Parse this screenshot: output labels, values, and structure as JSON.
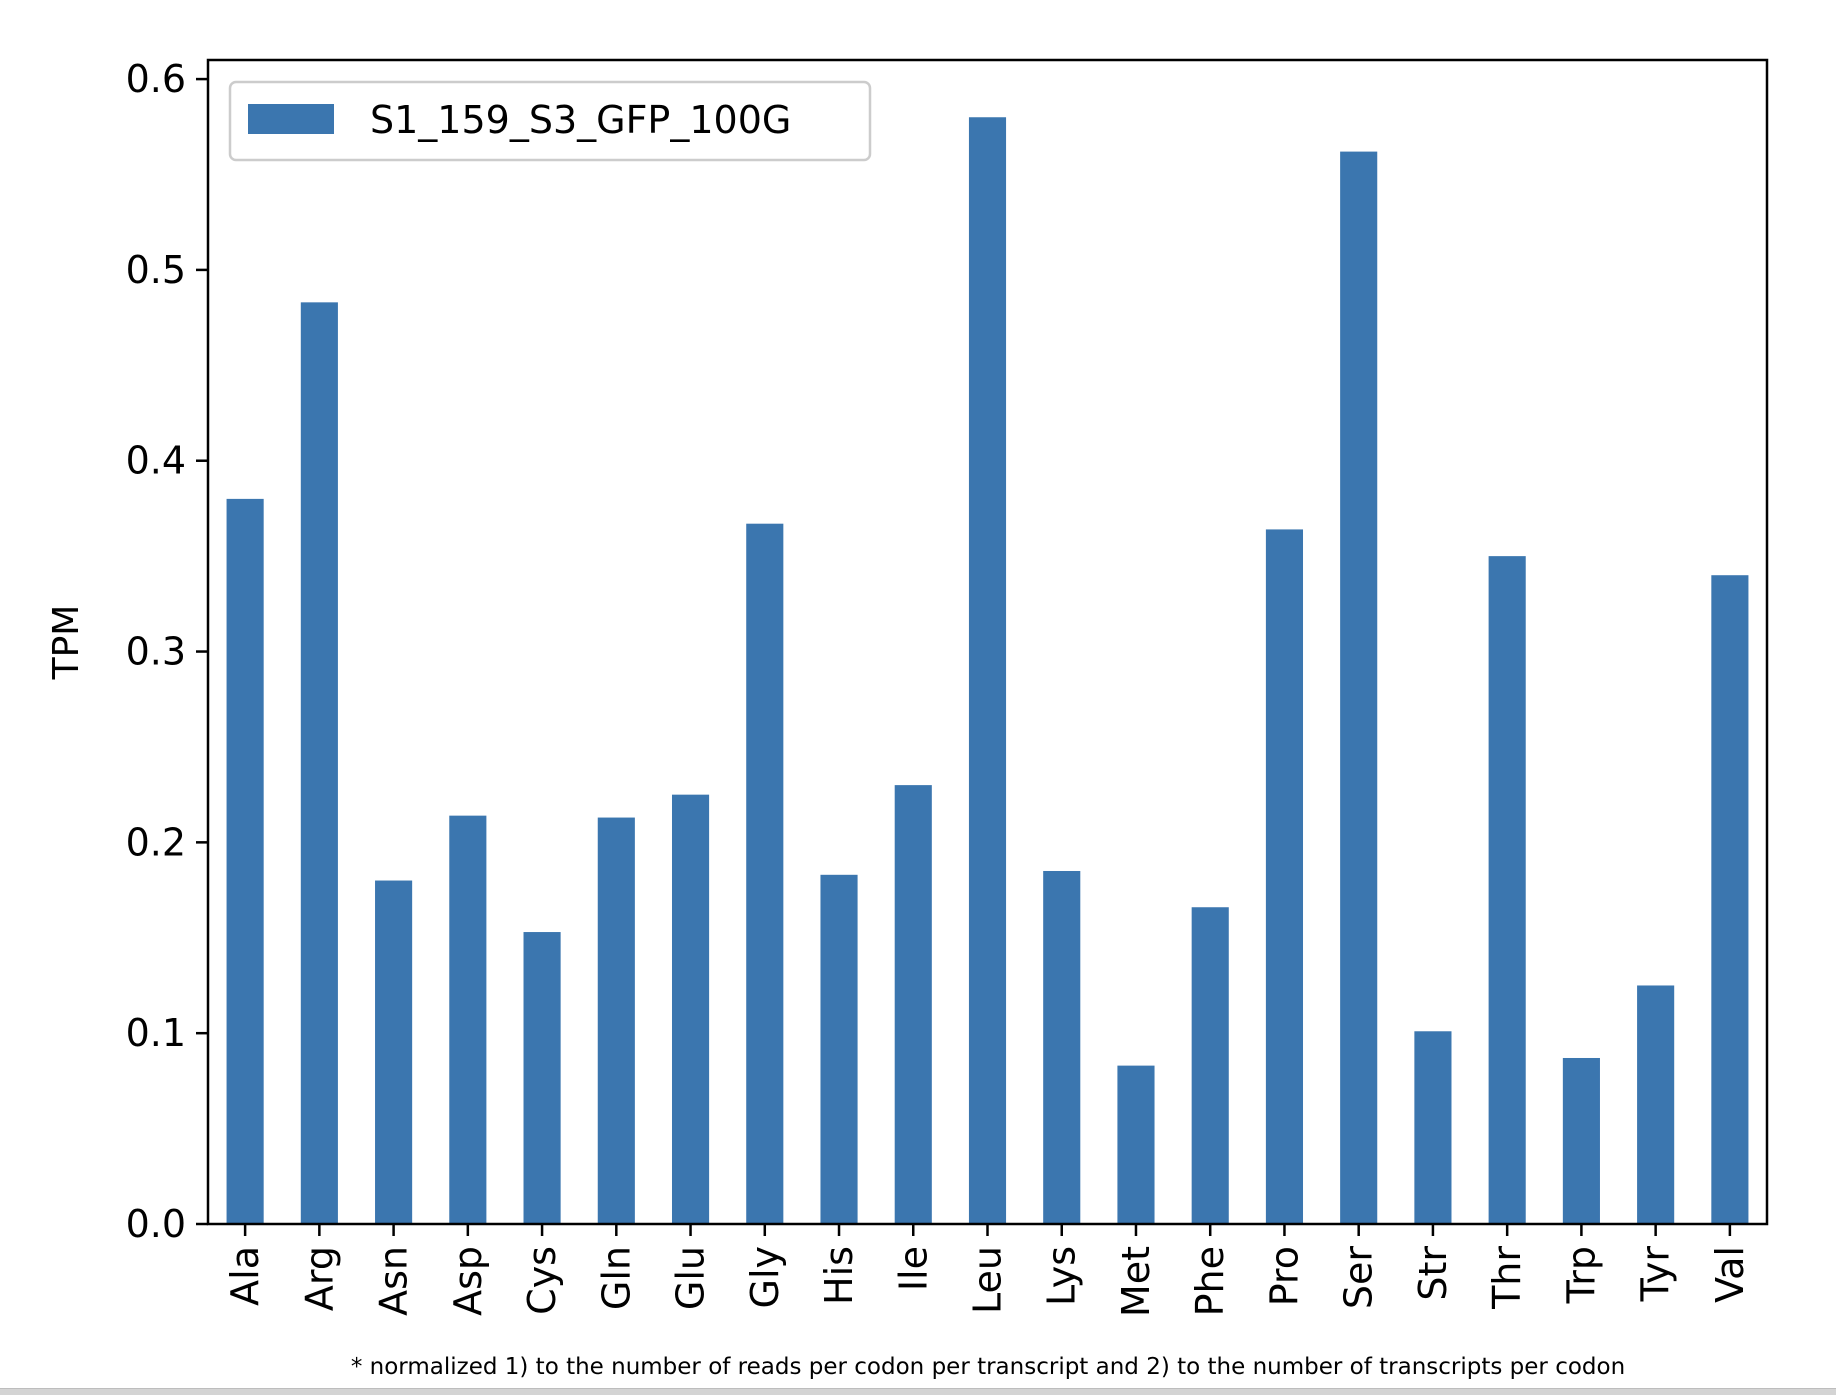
{
  "chart_data": {
    "type": "bar",
    "title": "",
    "xlabel": "",
    "ylabel": "TPM",
    "ylim": [
      0,
      0.61
    ],
    "yticks": [
      "0.0",
      "0.1",
      "0.2",
      "0.3",
      "0.4",
      "0.5",
      "0.6"
    ],
    "categories": [
      "Ala",
      "Arg",
      "Asn",
      "Asp",
      "Cys",
      "Gln",
      "Glu",
      "Gly",
      "His",
      "Ile",
      "Leu",
      "Lys",
      "Met",
      "Phe",
      "Pro",
      "Ser",
      "Str",
      "Thr",
      "Trp",
      "Tyr",
      "Val"
    ],
    "series": [
      {
        "name": "S1_159_S3_GFP_100G",
        "color": "#3b76af",
        "values": [
          0.38,
          0.483,
          0.18,
          0.214,
          0.153,
          0.213,
          0.225,
          0.367,
          0.183,
          0.23,
          0.58,
          0.185,
          0.083,
          0.166,
          0.364,
          0.562,
          0.101,
          0.35,
          0.087,
          0.125,
          0.34
        ]
      }
    ],
    "legend_position": "top-left",
    "grid": false,
    "footnote": "* normalized 1) to the number of reads per codon per transcript and 2) to the number of transcripts per codon"
  }
}
